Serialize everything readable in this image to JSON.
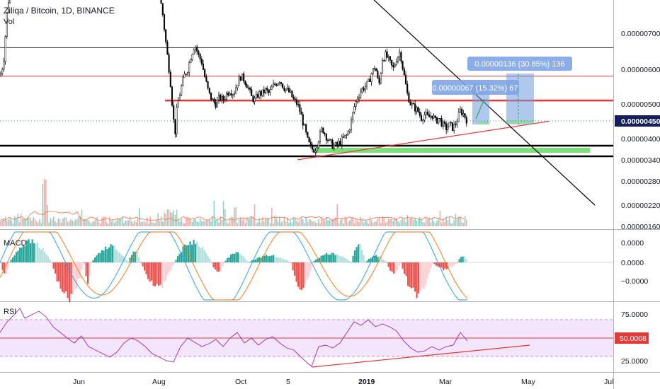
{
  "header": {
    "symbol_title": "Ziliqa / Bitcoin, 1D, BINANCE",
    "volume_label": "Vol"
  },
  "price_axis": {
    "ticks": [
      "0.00000700",
      "0.00000600",
      "0.00000500",
      "0.00000400",
      "0.00000340",
      "0.00000280",
      "0.00000220",
      "0.00000160"
    ],
    "current_price_label": "0.00000450"
  },
  "macd_pane": {
    "label": "MACD",
    "ticks": [
      "0.0000",
      "0.0000",
      "−0.0000"
    ]
  },
  "rsi_pane": {
    "label": "RSI",
    "ticks": [
      "75.0000",
      "25.0000"
    ],
    "current_value_label": "50.0008"
  },
  "time_axis": {
    "labels": [
      "Jun",
      "Aug",
      "Oct",
      "5",
      "2019",
      "Mar",
      "May",
      "Jul"
    ]
  },
  "annotations": {
    "measure_small": "0.00000067 (15.32%) 67",
    "measure_large": "0.00000136 (30.85%) 136"
  },
  "colors": {
    "up": "#26a69a",
    "down": "#ef5350",
    "volume_up": "#8fd1c8",
    "volume_down": "#f7a9a7",
    "rsi_band": "#f3e5fb",
    "rsi_line": "#9c27b0",
    "resistance_red": "#e53935",
    "support_green": "#7ce07a",
    "measure_blue": "#6f9ae0",
    "macd_line": "#2196f3",
    "signal_line": "#ff6d00"
  },
  "chart_data": {
    "type": "candlestick",
    "symbol": "ZILBTC",
    "exchange": "BINANCE",
    "interval": "1D",
    "price_range": [
      1.6e-06,
      7.8e-06
    ],
    "x_labels": [
      "Jun",
      "Aug",
      "Oct",
      "5",
      "2019",
      "Mar",
      "May",
      "Jul"
    ],
    "close_path": [
      [
        0,
        5.8e-06
      ],
      [
        5,
        6.2e-06
      ],
      [
        10,
        7.6e-06
      ],
      [
        14,
        8.2e-06
      ],
      [
        20,
        8.5e-06
      ],
      [
        30,
        8.6e-06
      ],
      [
        40,
        8.7e-06
      ],
      [
        50,
        8.8e-06
      ],
      [
        60,
        8.8e-06
      ],
      [
        70,
        8.7e-06
      ],
      [
        80,
        8.8e-06
      ],
      [
        90,
        8.7e-06
      ],
      [
        100,
        8.6e-06
      ],
      [
        110,
        8.6e-06
      ],
      [
        120,
        8.6e-06
      ],
      [
        130,
        8.7e-06
      ],
      [
        140,
        8.6e-06
      ],
      [
        150,
        8.6e-06
      ],
      [
        160,
        8.7e-06
      ],
      [
        170,
        8.7e-06
      ],
      [
        180,
        8.6e-06
      ],
      [
        190,
        8.5e-06
      ],
      [
        200,
        8.6e-06
      ],
      [
        210,
        8.7e-06
      ],
      [
        220,
        8.5e-06
      ],
      [
        226,
        8e-06
      ],
      [
        230,
        7.5e-06
      ],
      [
        235,
        6.6e-06
      ],
      [
        240,
        5.8e-06
      ],
      [
        244,
        4.8e-06
      ],
      [
        247,
        4.1e-06
      ],
      [
        250,
        4.9e-06
      ],
      [
        255,
        5.4e-06
      ],
      [
        260,
        5.8e-06
      ],
      [
        265,
        6e-06
      ],
      [
        270,
        6.4e-06
      ],
      [
        275,
        6.7e-06
      ],
      [
        280,
        6.4e-06
      ],
      [
        285,
        6.2e-06
      ],
      [
        290,
        5.7e-06
      ],
      [
        295,
        5.3e-06
      ],
      [
        300,
        5.1e-06
      ],
      [
        305,
        5e-06
      ],
      [
        310,
        5.2e-06
      ],
      [
        315,
        5.1e-06
      ],
      [
        320,
        5.3e-06
      ],
      [
        325,
        5.4e-06
      ],
      [
        330,
        5.3e-06
      ],
      [
        335,
        5.6e-06
      ],
      [
        340,
        5.8e-06
      ],
      [
        345,
        5.7e-06
      ],
      [
        350,
        5.5e-06
      ],
      [
        355,
        5.2e-06
      ],
      [
        360,
        5.1e-06
      ],
      [
        365,
        5.3e-06
      ],
      [
        370,
        5.3e-06
      ],
      [
        375,
        5.4e-06
      ],
      [
        380,
        5.3e-06
      ],
      [
        385,
        5.5e-06
      ],
      [
        390,
        5.6e-06
      ],
      [
        395,
        5.7e-06
      ],
      [
        400,
        5.5e-06
      ],
      [
        405,
        5.4e-06
      ],
      [
        410,
        5.3e-06
      ],
      [
        415,
        5.1e-06
      ],
      [
        420,
        5e-06
      ],
      [
        425,
        4.7e-06
      ],
      [
        430,
        4.3e-06
      ],
      [
        435,
        3.9e-06
      ],
      [
        440,
        3.7e-06
      ],
      [
        445,
        3.7e-06
      ],
      [
        450,
        4e-06
      ],
      [
        455,
        4.3e-06
      ],
      [
        460,
        4.1e-06
      ],
      [
        465,
        3.9e-06
      ],
      [
        470,
        3.8e-06
      ],
      [
        475,
        3.8e-06
      ],
      [
        480,
        3.9e-06
      ],
      [
        485,
        4e-06
      ],
      [
        490,
        4.1e-06
      ],
      [
        495,
        4.4e-06
      ],
      [
        500,
        4.9e-06
      ],
      [
        505,
        5.2e-06
      ],
      [
        510,
        5.4e-06
      ],
      [
        515,
        5.5e-06
      ],
      [
        520,
        5.6e-06
      ],
      [
        525,
        5.9e-06
      ],
      [
        530,
        6.1e-06
      ],
      [
        535,
        5.5e-06
      ],
      [
        540,
        6.3e-06
      ],
      [
        545,
        6.4e-06
      ],
      [
        550,
        6.2e-06
      ],
      [
        555,
        6e-06
      ],
      [
        560,
        6.3e-06
      ],
      [
        565,
        6.5e-06
      ],
      [
        570,
        5.9e-06
      ],
      [
        575,
        5.3e-06
      ],
      [
        580,
        5e-06
      ],
      [
        585,
        4.9e-06
      ],
      [
        590,
        4.8e-06
      ],
      [
        595,
        4.6e-06
      ],
      [
        600,
        4.7e-06
      ],
      [
        605,
        4.6e-06
      ],
      [
        610,
        4.7e-06
      ],
      [
        615,
        4.5e-06
      ],
      [
        620,
        4.6e-06
      ],
      [
        625,
        4.4e-06
      ],
      [
        630,
        4.3e-06
      ],
      [
        635,
        4.4e-06
      ],
      [
        640,
        4.3e-06
      ],
      [
        645,
        4.5e-06
      ],
      [
        650,
        4.8e-06
      ],
      [
        655,
        4.7e-06
      ],
      [
        660,
        4.5e-06
      ]
    ],
    "horizontal_levels": [
      {
        "price": 6.6e-06,
        "color": "#2b2b2b",
        "style": "thin"
      },
      {
        "price": 5.8e-06,
        "color": "#e53935",
        "style": "thin"
      },
      {
        "price": 5.1e-06,
        "color": "#e53935",
        "style": "thick"
      },
      {
        "price": 3.8e-06,
        "color": "#000000",
        "style": "thick"
      },
      {
        "price": 3.5e-06,
        "color": "#000000",
        "style": "thick"
      }
    ],
    "support_zone": [
      3.7e-06,
      3.8e-06
    ],
    "trendlines": [
      {
        "from": [
          420,
          3.4e-06
        ],
        "to": [
          775,
          4.5e-06
        ],
        "color": "#e53935"
      },
      {
        "from": [
          480,
          8.8e-06
        ],
        "to": [
          840,
          2.2e-06
        ],
        "color": "#000000"
      }
    ],
    "rsi_levels": [
      25,
      50,
      75
    ]
  }
}
